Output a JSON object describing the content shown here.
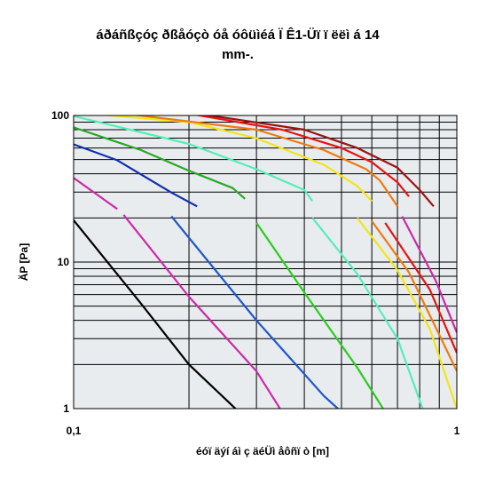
{
  "chart_data": {
    "type": "line",
    "title_lines": [
      "áðáñßçóç ðßåóçò óå óôüìéá Ï Ê1-Üï ï ëëì á 14",
      "mm-."
    ],
    "xlabel": "éóï äýí áì ç äéÜì åôñï ò [m]",
    "ylabel": "ÄP [Pa]",
    "x_scale": "log",
    "y_scale": "log",
    "xlim": [
      0.1,
      1
    ],
    "ylim": [
      1,
      100
    ],
    "x_ticks": [
      {
        "v": 0.1,
        "label": "0,1"
      },
      {
        "v": 1,
        "label": "1"
      }
    ],
    "y_ticks": [
      {
        "v": 1,
        "label": "1"
      },
      {
        "v": 10,
        "label": "10"
      },
      {
        "v": 100,
        "label": "100"
      }
    ],
    "x_gridlines": [
      0.2,
      0.3,
      0.4,
      0.5,
      0.6,
      0.7,
      0.8,
      0.9,
      1
    ],
    "y_gridlines": [
      2,
      3,
      4,
      5,
      6,
      7,
      8,
      9,
      10,
      20,
      30,
      40,
      50,
      60,
      70,
      80,
      90,
      100
    ],
    "grid": true,
    "legend": "none",
    "plot_background": "#e8ecee",
    "series": [
      {
        "color": "#000000",
        "points": [
          [
            0.1,
            19.3
          ],
          [
            0.15,
            5.2
          ],
          [
            0.2,
            2.0
          ],
          [
            0.27,
            0.95
          ]
        ]
      },
      {
        "color": "#cc2aa8",
        "points": [
          [
            0.1,
            37.5
          ],
          [
            0.13,
            23.0
          ]
        ]
      },
      {
        "color": "#cc2aa8",
        "points": [
          [
            0.135,
            21.0
          ],
          [
            0.2,
            5.8
          ],
          [
            0.3,
            1.8
          ],
          [
            0.35,
            0.95
          ]
        ]
      },
      {
        "color": "#0f2fb2",
        "points": [
          [
            0.1,
            63.5
          ],
          [
            0.13,
            49.5
          ],
          [
            0.18,
            29.8
          ],
          [
            0.21,
            24.0
          ]
        ]
      },
      {
        "color": "#1e55cc",
        "points": [
          [
            0.18,
            20.5
          ],
          [
            0.3,
            4.0
          ],
          [
            0.45,
            1.22
          ],
          [
            0.5,
            0.95
          ]
        ]
      },
      {
        "color": "#2aa82a",
        "points": [
          [
            0.1,
            83.0
          ],
          [
            0.15,
            58.0
          ],
          [
            0.2,
            42.0
          ],
          [
            0.26,
            32.0
          ],
          [
            0.28,
            27.0
          ]
        ]
      },
      {
        "color": "#2ccc1e",
        "points": [
          [
            0.3,
            18.5
          ],
          [
            0.4,
            6.2
          ],
          [
            0.55,
            1.9
          ],
          [
            0.65,
            0.95
          ]
        ]
      },
      {
        "color": "#55eeb8",
        "points": [
          [
            0.1,
            99.0
          ],
          [
            0.2,
            64.0
          ],
          [
            0.3,
            43.0
          ],
          [
            0.4,
            31.0
          ],
          [
            0.42,
            26.0
          ]
        ]
      },
      {
        "color": "#55eeb8",
        "points": [
          [
            0.42,
            20.0
          ],
          [
            0.55,
            8.3
          ],
          [
            0.7,
            3.0
          ],
          [
            0.82,
            0.95
          ]
        ]
      },
      {
        "color": "#f2e51a",
        "points": [
          [
            0.12,
            101.0
          ],
          [
            0.2,
            90.0
          ],
          [
            0.3,
            70.0
          ],
          [
            0.45,
            46.0
          ],
          [
            0.55,
            33.0
          ],
          [
            0.6,
            26.0
          ]
        ]
      },
      {
        "color": "#f2e51a",
        "points": [
          [
            0.55,
            20.0
          ],
          [
            0.7,
            8.8
          ],
          [
            0.85,
            3.5
          ],
          [
            1.0,
            1.0
          ]
        ]
      },
      {
        "color": "#f07a10",
        "points": [
          [
            0.14,
            102.0
          ],
          [
            0.3,
            80.0
          ],
          [
            0.45,
            58.0
          ],
          [
            0.58,
            43.0
          ],
          [
            0.63,
            36.0
          ],
          [
            0.7,
            24.0
          ]
        ]
      },
      {
        "color": "#f07a10",
        "points": [
          [
            0.6,
            19.0
          ],
          [
            0.75,
            8.5
          ],
          [
            0.88,
            3.6
          ],
          [
            1.0,
            1.8
          ]
        ]
      },
      {
        "color": "#e81414",
        "points": [
          [
            0.2,
            103.0
          ],
          [
            0.35,
            80.0
          ],
          [
            0.5,
            60.0
          ],
          [
            0.6,
            48.0
          ],
          [
            0.7,
            35.0
          ],
          [
            0.75,
            28.0
          ]
        ]
      },
      {
        "color": "#e81414",
        "points": [
          [
            0.65,
            18.5
          ],
          [
            0.85,
            6.5
          ],
          [
            1.0,
            2.4
          ]
        ]
      },
      {
        "color": "#9a1414",
        "points": [
          [
            0.2,
            105.0
          ],
          [
            0.4,
            80.0
          ],
          [
            0.55,
            60.0
          ],
          [
            0.7,
            44.0
          ],
          [
            0.8,
            31.0
          ],
          [
            0.87,
            24.0
          ]
        ]
      },
      {
        "color": "#cc2aa8",
        "points": [
          [
            0.72,
            20.5
          ],
          [
            0.88,
            7.5
          ],
          [
            1.0,
            3.3
          ]
        ]
      }
    ]
  }
}
